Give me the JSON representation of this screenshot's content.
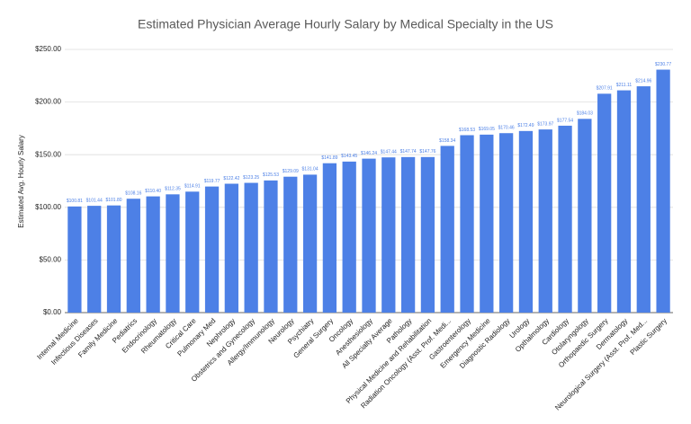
{
  "chart_data": {
    "type": "bar",
    "title": "Estimated Physician Average Hourly Salary by Medical Specialty in the US",
    "y_label": "Estimated Avg. Hourly Salary",
    "categories": [
      "Internal Medicine",
      "Infectious Diseases",
      "Family Medicine",
      "Pediatrics",
      "Endocrinology",
      "Rheumatology",
      "Critical Care",
      "Pulmonary Med",
      "Nephrology",
      "Obstetrics and Gynecology",
      "Allergy/Immunology",
      "Neurology",
      "Psychiatry",
      "General Surgery",
      "Oncology",
      "Anesthesiology",
      "All Specialty Average",
      "Pathology",
      "Physical Medicine and Rehabilitation",
      "Radiation Oncology (Asst. Prof. Medi...",
      "Gastroenterology",
      "Emergency Medicine",
      "Diagnostic Radiology",
      "Urology",
      "Opthalmology",
      "Cardiology",
      "Otolaryngology",
      "Orthopaedic Surgery",
      "Dermatology",
      "Neurological Surgery (Asst. Prof. Med...",
      "Plastic Surgery"
    ],
    "values": [
      100.81,
      101.44,
      101.8,
      108.16,
      110.4,
      112.35,
      114.91,
      119.77,
      122.42,
      123.25,
      125.53,
      129.09,
      131.04,
      141.89,
      143.45,
      146.24,
      147.44,
      147.74,
      147.76,
      158.34,
      168.53,
      169.05,
      170.46,
      172.49,
      173.97,
      177.54,
      184.03,
      207.91,
      211.11,
      214.96,
      230.77
    ],
    "value_labels": [
      "$100.81",
      "$101.44",
      "$101.80",
      "$108.16",
      "$110.40",
      "$112.35",
      "$114.91",
      "$119.77",
      "$122.42",
      "$123.25",
      "$125.53",
      "$129.09",
      "$131.04",
      "$141.89",
      "$143.45",
      "$146.24",
      "$147.44",
      "$147.74",
      "$147.76",
      "$158.34",
      "$168.53",
      "$169.05",
      "$170.46",
      "$172.49",
      "$173.97",
      "$177.54",
      "$184.03",
      "$207.91",
      "$211.11",
      "$214.96",
      "$230.77"
    ],
    "color": "#4d80e6",
    "ylim": [
      0,
      250
    ],
    "yticks": [
      {
        "value": 0,
        "label": "$0.00"
      },
      {
        "value": 50,
        "label": "$50.00"
      },
      {
        "value": 100,
        "label": "$100.00"
      },
      {
        "value": 150,
        "label": "$150.00"
      },
      {
        "value": 200,
        "label": "$200.00"
      },
      {
        "value": 250,
        "label": "$250.00"
      }
    ],
    "grid": true
  }
}
